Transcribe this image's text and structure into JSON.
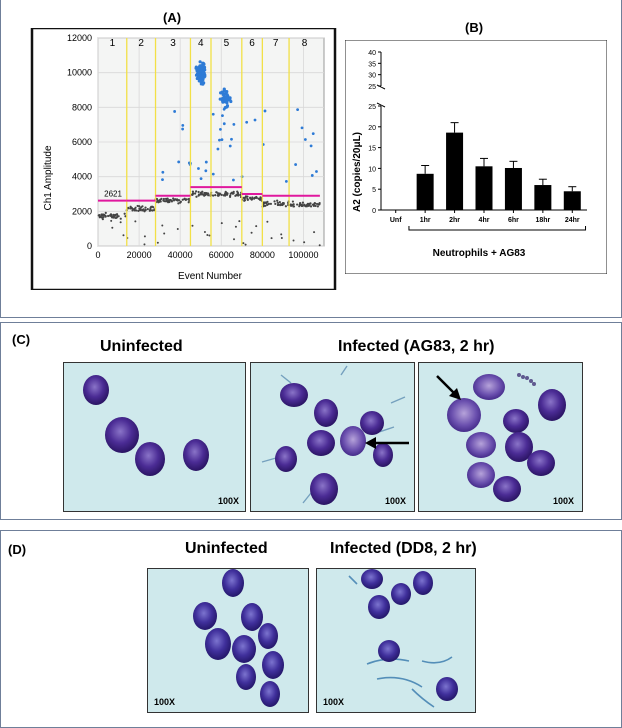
{
  "panel_a": {
    "label": "(A)",
    "cluster_labels": [
      "1",
      "2",
      "3",
      "4",
      "5",
      "6",
      "7",
      "8"
    ],
    "threshold_label": "2621",
    "colors": {
      "threshold": "#e0189e",
      "points": "#2e7bd6",
      "negatives": "#444444",
      "dividers": "#f2e046"
    }
  },
  "panel_b": {
    "label": "(B)",
    "group_label": "Neutrophils + AG83"
  },
  "panel_c": {
    "label": "(C)",
    "uninfected_title": "Uninfected",
    "infected_title": "Infected (AG83, 2 hr)",
    "magnification": "100X"
  },
  "panel_d": {
    "label": "(D)",
    "uninfected_title": "Uninfected",
    "infected_title": "Infected (DD8, 2 hr)",
    "magnification": "100X"
  },
  "chart_data": [
    {
      "type": "scatter",
      "title": "",
      "xlabel": "Event Number",
      "ylabel": "Ch1 Amplitude",
      "xlim": [
        0,
        110000
      ],
      "ylim": [
        0,
        12000
      ],
      "xticks": [
        0,
        20000,
        40000,
        60000,
        80000,
        100000
      ],
      "yticks": [
        0,
        2000,
        4000,
        6000,
        8000,
        10000,
        12000
      ],
      "threshold": 2621,
      "segments": [
        {
          "name": "1",
          "x": [
            0,
            14000
          ],
          "negative_band": 1750,
          "threshold": 2621
        },
        {
          "name": "2",
          "x": [
            14000,
            28000
          ],
          "negative_band": 2150,
          "threshold": 2621
        },
        {
          "name": "3",
          "x": [
            28000,
            45000
          ],
          "negative_band": 2650,
          "threshold": 2900
        },
        {
          "name": "4",
          "x": [
            45000,
            55000
          ],
          "negative_band": 3000,
          "threshold": 3400
        },
        {
          "name": "5",
          "x": [
            55000,
            70000
          ],
          "negative_band": 3000,
          "threshold": 3400
        },
        {
          "name": "6",
          "x": [
            70000,
            80000
          ],
          "negative_band": 2750,
          "threshold": 3000
        },
        {
          "name": "7",
          "x": [
            80000,
            93000
          ],
          "negative_band": 2450,
          "threshold": 2900
        },
        {
          "name": "8",
          "x": [
            93000,
            108000
          ],
          "negative_band": 2400,
          "threshold": 2900
        }
      ],
      "positive_clusters": [
        {
          "name": "4",
          "x_center": 50000,
          "y_center": 10000,
          "spread_y": 800,
          "count": 90
        },
        {
          "name": "5",
          "x_center": 62000,
          "y_center": 8500,
          "spread_y": 900,
          "count": 40
        }
      ]
    },
    {
      "type": "bar",
      "title": "",
      "categories": [
        "Unf",
        "1hr",
        "2hr",
        "4hr",
        "6hr",
        "18hr",
        "24hr"
      ],
      "values": [
        0,
        8.7,
        18.6,
        10.5,
        10.1,
        6.0,
        4.5
      ],
      "errors": [
        0,
        2.0,
        2.4,
        1.9,
        1.6,
        1.4,
        1.1
      ],
      "xlabel": "",
      "ylabel": "A2 (copies/20μL)",
      "ylim": [
        0,
        40
      ],
      "y_break": [
        25,
        25
      ],
      "yticks_lower": [
        0,
        5,
        10,
        15,
        20,
        25
      ],
      "yticks_upper": [
        25,
        30,
        35,
        40
      ]
    }
  ]
}
